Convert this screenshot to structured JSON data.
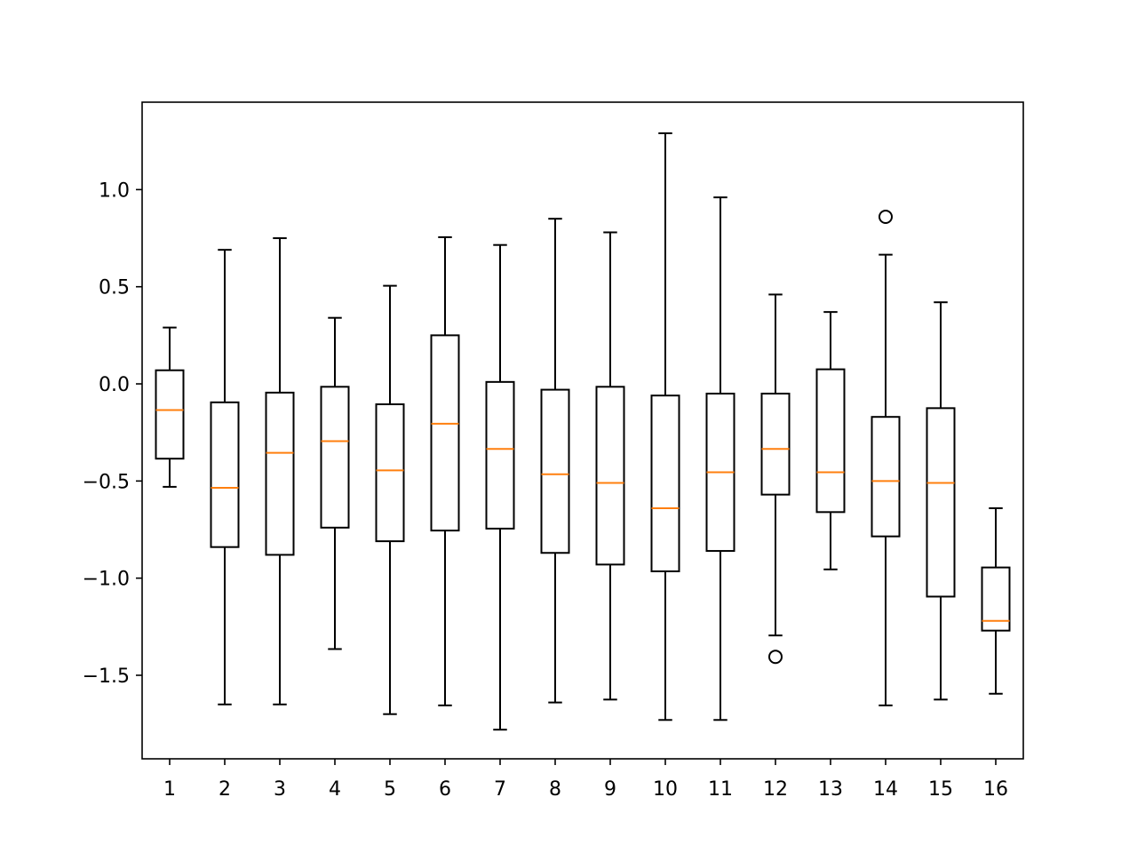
{
  "chart_data": {
    "type": "box",
    "title": "",
    "xlabel": "",
    "ylabel": "",
    "categories": [
      "1",
      "2",
      "3",
      "4",
      "5",
      "6",
      "7",
      "8",
      "9",
      "10",
      "11",
      "12",
      "13",
      "14",
      "15",
      "16"
    ],
    "ylim": [
      -1.93,
      1.45
    ],
    "yticks": [
      {
        "value": 1.0,
        "label": "1.0"
      },
      {
        "value": 0.5,
        "label": "0.5"
      },
      {
        "value": 0.0,
        "label": "0.0"
      },
      {
        "value": -0.5,
        "label": "−0.5"
      },
      {
        "value": -1.0,
        "label": "−1.0"
      },
      {
        "value": -1.5,
        "label": "−1.5"
      }
    ],
    "grid": false,
    "colors": {
      "box": "#000000",
      "median": "#ff7f0e",
      "background": "#ffffff"
    },
    "boxes": [
      {
        "label": "1",
        "whisker_low": -0.53,
        "q1": -0.385,
        "median": -0.135,
        "q3": 0.07,
        "whisker_high": 0.29,
        "outliers": []
      },
      {
        "label": "2",
        "whisker_low": -1.65,
        "q1": -0.84,
        "median": -0.535,
        "q3": -0.095,
        "whisker_high": 0.69,
        "outliers": []
      },
      {
        "label": "3",
        "whisker_low": -1.65,
        "q1": -0.88,
        "median": -0.355,
        "q3": -0.045,
        "whisker_high": 0.75,
        "outliers": []
      },
      {
        "label": "4",
        "whisker_low": -1.365,
        "q1": -0.74,
        "median": -0.295,
        "q3": -0.015,
        "whisker_high": 0.34,
        "outliers": []
      },
      {
        "label": "5",
        "whisker_low": -1.7,
        "q1": -0.81,
        "median": -0.445,
        "q3": -0.105,
        "whisker_high": 0.505,
        "outliers": []
      },
      {
        "label": "6",
        "whisker_low": -1.655,
        "q1": -0.755,
        "median": -0.205,
        "q3": 0.25,
        "whisker_high": 0.755,
        "outliers": []
      },
      {
        "label": "7",
        "whisker_low": -1.78,
        "q1": -0.745,
        "median": -0.335,
        "q3": 0.01,
        "whisker_high": 0.715,
        "outliers": []
      },
      {
        "label": "8",
        "whisker_low": -1.64,
        "q1": -0.87,
        "median": -0.465,
        "q3": -0.03,
        "whisker_high": 0.85,
        "outliers": []
      },
      {
        "label": "9",
        "whisker_low": -1.625,
        "q1": -0.93,
        "median": -0.51,
        "q3": -0.015,
        "whisker_high": 0.78,
        "outliers": []
      },
      {
        "label": "10",
        "whisker_low": -1.73,
        "q1": -0.965,
        "median": -0.64,
        "q3": -0.06,
        "whisker_high": 1.29,
        "outliers": []
      },
      {
        "label": "11",
        "whisker_low": -1.73,
        "q1": -0.86,
        "median": -0.455,
        "q3": -0.05,
        "whisker_high": 0.96,
        "outliers": []
      },
      {
        "label": "12",
        "whisker_low": -1.295,
        "q1": -0.57,
        "median": -0.335,
        "q3": -0.05,
        "whisker_high": 0.46,
        "outliers": [
          -1.405
        ]
      },
      {
        "label": "13",
        "whisker_low": -0.955,
        "q1": -0.66,
        "median": -0.455,
        "q3": 0.075,
        "whisker_high": 0.37,
        "outliers": []
      },
      {
        "label": "14",
        "whisker_low": -1.655,
        "q1": -0.785,
        "median": -0.5,
        "q3": -0.17,
        "whisker_high": 0.665,
        "outliers": [
          0.86
        ]
      },
      {
        "label": "15",
        "whisker_low": -1.625,
        "q1": -1.095,
        "median": -0.51,
        "q3": -0.125,
        "whisker_high": 0.42,
        "outliers": []
      },
      {
        "label": "16",
        "whisker_low": -1.595,
        "q1": -1.27,
        "median": -1.22,
        "q3": -0.945,
        "whisker_high": -0.64,
        "outliers": []
      }
    ]
  }
}
